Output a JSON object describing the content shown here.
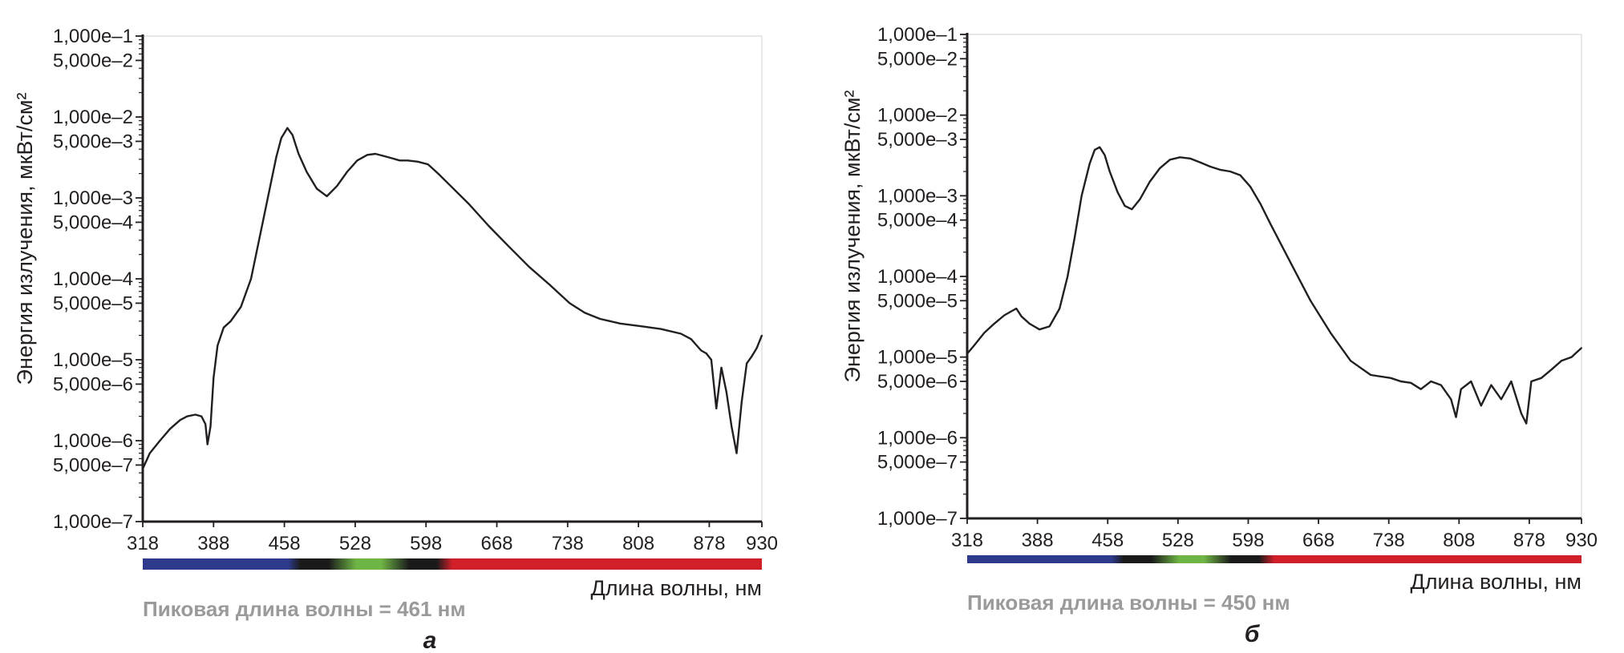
{
  "chart_data": [
    {
      "type": "line",
      "panel_label": "а",
      "ylabel": "Энергия излучения, мкВт/см²",
      "xlabel": "Длина волны, нм",
      "peak_text": "Пиковая длина волны = 461 нм",
      "xlim": [
        318,
        930
      ],
      "ylim": [
        1e-07,
        0.1
      ],
      "yscale": "log",
      "x_ticks": [
        "318",
        "388",
        "458",
        "528",
        "598",
        "668",
        "738",
        "808",
        "878",
        "930"
      ],
      "x_tick_values": [
        318,
        388,
        458,
        528,
        598,
        668,
        738,
        808,
        878,
        930
      ],
      "y_ticks": [
        "1,000е–1",
        "5,000е–2",
        "1,000е–2",
        "5,000е–3",
        "1,000е–3",
        "5,000е–4",
        "1,000е–4",
        "5,000е–5",
        "1,000е–5",
        "5,000е–6",
        "1,000е–6",
        "5,000е–7",
        "1,000е–7"
      ],
      "y_tick_values": [
        0.1,
        0.05,
        0.01,
        0.005,
        0.001,
        0.0005,
        0.0001,
        5e-05,
        1e-05,
        5e-06,
        1e-06,
        5e-07,
        1e-07
      ],
      "series": [
        {
          "x": [
            318,
            325,
            335,
            345,
            355,
            362,
            370,
            376,
            380,
            382,
            385,
            388,
            392,
            398,
            405,
            415,
            425,
            435,
            445,
            450,
            455,
            461,
            466,
            472,
            480,
            490,
            500,
            510,
            520,
            530,
            540,
            548,
            556,
            564,
            572,
            580,
            590,
            600,
            610,
            620,
            640,
            660,
            680,
            700,
            720,
            740,
            755,
            770,
            790,
            810,
            830,
            850,
            860,
            870,
            875,
            880,
            885,
            890,
            895,
            900,
            905,
            910,
            915,
            920,
            925,
            930
          ],
          "values": [
            4.5e-07,
            7e-07,
            1e-06,
            1.4e-06,
            1.8e-06,
            2e-06,
            2.1e-06,
            2e-06,
            1.6e-06,
            9e-07,
            1.5e-06,
            6e-06,
            1.5e-05,
            2.5e-05,
            3e-05,
            4.5e-05,
            0.0001,
            0.0004,
            0.0016,
            0.0032,
            0.0055,
            0.0073,
            0.006,
            0.0035,
            0.0021,
            0.0013,
            0.00105,
            0.0014,
            0.0021,
            0.0029,
            0.0034,
            0.0035,
            0.0033,
            0.0031,
            0.0029,
            0.0029,
            0.0028,
            0.0026,
            0.002,
            0.0015,
            0.00085,
            0.00045,
            0.00025,
            0.00014,
            8.5e-05,
            5e-05,
            3.8e-05,
            3.2e-05,
            2.8e-05,
            2.6e-05,
            2.4e-05,
            2.1e-05,
            1.8e-05,
            1.3e-05,
            1.2e-05,
            1e-05,
            2.5e-06,
            8e-06,
            4e-06,
            1.5e-06,
            7e-07,
            3e-06,
            9e-06,
            1.1e-05,
            1.4e-05,
            2e-05
          ]
        }
      ]
    },
    {
      "type": "line",
      "panel_label": "б",
      "ylabel": "Энергия излучения, мкВт/см²",
      "xlabel": "Длина волны, нм",
      "peak_text": "Пиковая длина волны = 450 нм",
      "xlim": [
        318,
        930
      ],
      "ylim": [
        1e-07,
        0.1
      ],
      "yscale": "log",
      "x_ticks": [
        "318",
        "388",
        "458",
        "528",
        "598",
        "668",
        "738",
        "808",
        "878",
        "930"
      ],
      "x_tick_values": [
        318,
        388,
        458,
        528,
        598,
        668,
        738,
        808,
        878,
        930
      ],
      "y_ticks": [
        "1,000е–1",
        "5,000е–2",
        "1,000е–2",
        "5,000е–3",
        "1,000е–3",
        "5,000е–4",
        "1,000е–4",
        "5,000е–5",
        "1,000е–5",
        "5,000е–6",
        "1,000е–6",
        "5,000е–7",
        "1,000е–7"
      ],
      "y_tick_values": [
        0.1,
        0.05,
        0.01,
        0.005,
        0.001,
        0.0005,
        0.0001,
        5e-05,
        1e-05,
        5e-06,
        1e-06,
        5e-07,
        1e-07
      ],
      "series": [
        {
          "x": [
            318,
            325,
            335,
            345,
            355,
            362,
            367,
            372,
            380,
            390,
            400,
            410,
            418,
            425,
            432,
            440,
            445,
            450,
            455,
            460,
            468,
            475,
            482,
            490,
            500,
            510,
            520,
            530,
            540,
            550,
            560,
            570,
            580,
            590,
            600,
            610,
            620,
            640,
            660,
            680,
            700,
            720,
            740,
            750,
            760,
            770,
            780,
            790,
            800,
            805,
            810,
            820,
            830,
            840,
            850,
            860,
            870,
            875,
            880,
            890,
            900,
            910,
            920,
            930
          ],
          "values": [
            1.1e-05,
            1.4e-05,
            2e-05,
            2.6e-05,
            3.3e-05,
            3.7e-05,
            4e-05,
            3.2e-05,
            2.6e-05,
            2.2e-05,
            2.4e-05,
            4e-05,
            0.0001,
            0.0003,
            0.001,
            0.0025,
            0.0037,
            0.004,
            0.0032,
            0.002,
            0.0011,
            0.00075,
            0.00068,
            0.0009,
            0.0015,
            0.0022,
            0.0028,
            0.003,
            0.0029,
            0.0026,
            0.0023,
            0.0021,
            0.002,
            0.0018,
            0.0013,
            0.0008,
            0.00045,
            0.00015,
            5e-05,
            2e-05,
            9e-06,
            6e-06,
            5.5e-06,
            5e-06,
            4.8e-06,
            4e-06,
            5e-06,
            4.5e-06,
            3e-06,
            1.8e-06,
            4e-06,
            5e-06,
            2.5e-06,
            4.5e-06,
            3e-06,
            5e-06,
            2e-06,
            1.5e-06,
            5e-06,
            5.5e-06,
            7e-06,
            9e-06,
            1e-05,
            1.3e-05
          ]
        }
      ]
    }
  ],
  "spectrum_colors": [
    "#2e3a8c",
    "#1a1a1a",
    "#6fb546",
    "#1a1a1a",
    "#d11f2a"
  ],
  "axis_color": "#231f20",
  "peak_text_color": "#9a9a9a"
}
